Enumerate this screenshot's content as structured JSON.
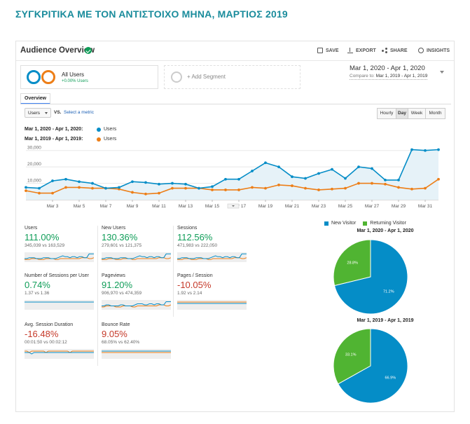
{
  "page_heading": "ΣΥΓΚΡΙΤΙΚΑ ΜΕ ΤΟΝ ΑΝΤΙΣΤΟΙΧΟ ΜΗΝΑ, ΜΑΡΤΙΟΣ 2019",
  "header": {
    "title": "Audience Overview",
    "actions": {
      "save": "SAVE",
      "export": "EXPORT",
      "share": "SHARE",
      "insights": "INSIGHTS"
    }
  },
  "segments": {
    "all_users": {
      "label": "All Users",
      "sub": "+0.00% Users"
    },
    "add_segment": "+ Add Segment"
  },
  "date_range": {
    "main": "Mar 1, 2020 - Apr 1, 2020",
    "compare_prefix": "Compare to:",
    "compare_range": "Mar 1, 2019 - Apr 1, 2019"
  },
  "tabs": {
    "overview": "Overview"
  },
  "controls": {
    "metric": "Users",
    "vs": "VS.",
    "select_metric": "Select a metric",
    "granularity": [
      "Hourly",
      "Day",
      "Week",
      "Month"
    ],
    "active_granularity": "Day"
  },
  "legend": {
    "current_range": "Mar 1, 2020 - Apr 1, 2020:",
    "previous_range": "Mar 1, 2019 - Apr 1, 2019:",
    "series_name": "Users"
  },
  "colors": {
    "current": "#058dc7",
    "previous": "#ed7e17",
    "new_visitor": "#058dc7",
    "returning_visitor": "#50b432",
    "positive": "#0f9d58",
    "negative": "#c53929",
    "heading": "#1a8c9c"
  },
  "chart_data": [
    {
      "type": "line",
      "x_ticks": [
        "Mar 3",
        "Mar 5",
        "Mar 7",
        "Mar 9",
        "Mar 11",
        "Mar 13",
        "Mar 15",
        "Mar 17",
        "Mar 19",
        "Mar 21",
        "Mar 23",
        "Mar 25",
        "Mar 27",
        "Mar 29",
        "Mar 31"
      ],
      "y_ticks": [
        "10,000",
        "20,000",
        "30,000"
      ],
      "ylim": [
        0,
        35000
      ],
      "x": [
        1,
        2,
        3,
        4,
        5,
        6,
        7,
        8,
        9,
        10,
        11,
        12,
        13,
        14,
        15,
        16,
        17,
        18,
        19,
        20,
        21,
        22,
        23,
        24,
        25,
        26,
        27,
        28,
        29,
        30,
        31,
        32
      ],
      "series": [
        {
          "values": [
            7500,
            7000,
            11500,
            12500,
            11000,
            10000,
            7000,
            7500,
            11000,
            10500,
            9500,
            10000,
            9500,
            7000,
            8000,
            12500,
            12500,
            17500,
            22500,
            20000,
            14000,
            13000,
            16000,
            18500,
            13000,
            20000,
            19000,
            12000,
            12000,
            30500,
            30000,
            30500
          ]
        },
        {
          "values": [
            5500,
            4000,
            4000,
            7500,
            7500,
            7000,
            7000,
            6500,
            4500,
            3500,
            4000,
            7000,
            7000,
            7000,
            6000,
            6000,
            6000,
            7500,
            7000,
            9000,
            8500,
            7000,
            6000,
            6500,
            7000,
            10000,
            10000,
            9500,
            7500,
            6500,
            7000,
            12500
          ]
        }
      ]
    },
    {
      "type": "pie",
      "title": "Mar 1, 2020 - Apr 1, 2020",
      "slices": [
        {
          "label": "New Visitor",
          "value": 71.2,
          "text": "71.2%"
        },
        {
          "label": "Returning Visitor",
          "value": 28.8,
          "text": "28.8%"
        }
      ]
    },
    {
      "type": "pie",
      "title": "Mar 1, 2019 - Apr 1, 2019",
      "slices": [
        {
          "label": "New Visitor",
          "value": 66.9,
          "text": "66.9%"
        },
        {
          "label": "Returning Visitor",
          "value": 33.1,
          "text": "33.1%"
        }
      ]
    }
  ],
  "metrics": [
    {
      "name": "Users",
      "value": "111.00%",
      "sign": "pos",
      "compare": "345,039 vs 163,529",
      "spark_a": [
        3,
        3,
        4,
        4,
        4,
        3,
        3,
        3,
        4,
        4,
        4,
        3,
        3,
        3,
        4,
        5,
        6,
        5,
        5,
        4,
        5,
        5,
        4,
        5,
        5,
        4,
        4,
        8,
        8,
        8
      ],
      "spark_b": [
        2,
        2,
        2,
        3,
        3,
        3,
        2,
        2,
        2,
        3,
        3,
        3,
        3,
        2,
        2,
        3,
        3,
        3,
        3,
        3,
        3,
        3,
        3,
        3,
        4,
        4,
        4,
        3,
        3,
        4
      ]
    },
    {
      "name": "New Users",
      "value": "130.36%",
      "sign": "pos",
      "compare": "279,601 vs 121,375",
      "spark_a": [
        3,
        3,
        4,
        4,
        4,
        3,
        3,
        3,
        4,
        4,
        4,
        3,
        3,
        3,
        4,
        5,
        6,
        5,
        5,
        4,
        5,
        5,
        4,
        5,
        5,
        4,
        4,
        8,
        8,
        8
      ],
      "spark_b": [
        2,
        2,
        2,
        3,
        3,
        3,
        2,
        2,
        2,
        3,
        3,
        3,
        3,
        2,
        2,
        3,
        3,
        3,
        3,
        3,
        3,
        3,
        3,
        3,
        4,
        4,
        4,
        3,
        3,
        4
      ]
    },
    {
      "name": "Sessions",
      "value": "112.56%",
      "sign": "pos",
      "compare": "471,983 vs 222,050",
      "spark_a": [
        3,
        3,
        4,
        4,
        4,
        3,
        3,
        3,
        4,
        4,
        4,
        3,
        3,
        3,
        4,
        5,
        6,
        5,
        5,
        4,
        5,
        5,
        4,
        5,
        5,
        4,
        4,
        8,
        8,
        8
      ],
      "spark_b": [
        2,
        2,
        2,
        3,
        3,
        3,
        2,
        2,
        2,
        3,
        3,
        3,
        3,
        2,
        2,
        3,
        3,
        3,
        3,
        3,
        3,
        3,
        3,
        3,
        4,
        4,
        4,
        3,
        3,
        4
      ]
    },
    {
      "name": "Number of Sessions per User",
      "value": "0.74%",
      "sign": "pos",
      "compare": "1.37 vs 1.36",
      "spark_a": [
        5,
        5,
        5,
        5,
        5,
        5,
        5,
        5,
        5,
        5,
        5,
        5,
        5,
        5,
        5,
        5,
        5,
        5,
        5,
        5,
        5,
        5,
        5,
        5,
        5,
        5,
        5,
        5,
        5,
        5
      ],
      "spark_b": [
        5,
        5,
        5,
        5,
        5,
        5,
        5,
        5,
        5,
        5,
        5,
        5,
        5,
        5,
        5,
        5,
        5,
        5,
        5,
        5,
        5,
        5,
        5,
        5,
        5,
        5,
        5,
        5,
        5,
        5
      ]
    },
    {
      "name": "Pageviews",
      "value": "91.20%",
      "sign": "pos",
      "compare": "906,970 vs 474,359",
      "spark_a": [
        3,
        3,
        4,
        4,
        3,
        3,
        3,
        3,
        4,
        4,
        3,
        3,
        3,
        3,
        4,
        5,
        5,
        5,
        4,
        4,
        5,
        5,
        4,
        5,
        5,
        4,
        4,
        7,
        7,
        7
      ],
      "spark_b": [
        2,
        2,
        3,
        3,
        3,
        3,
        2,
        2,
        2,
        3,
        3,
        3,
        3,
        2,
        2,
        3,
        3,
        3,
        3,
        3,
        3,
        3,
        3,
        3,
        4,
        4,
        4,
        3,
        3,
        4
      ]
    },
    {
      "name": "Pages / Session",
      "value": "-10.05%",
      "sign": "neg",
      "compare": "1.92 vs 2.14",
      "spark_a": [
        4,
        4,
        4,
        4,
        4,
        4,
        4,
        4,
        4,
        4,
        4,
        4,
        4,
        4,
        4,
        4,
        4,
        4,
        4,
        4,
        4,
        4,
        4,
        4,
        4,
        4,
        4,
        4,
        4,
        4
      ],
      "spark_b": [
        5,
        5,
        5,
        5,
        5,
        5,
        5,
        5,
        5,
        5,
        5,
        5,
        5,
        5,
        5,
        5,
        5,
        5,
        5,
        5,
        5,
        5,
        5,
        5,
        5,
        5,
        5,
        5,
        5,
        5
      ]
    },
    {
      "name": "Avg. Session Duration",
      "value": "-16.48%",
      "sign": "neg",
      "compare": "00:01:50 vs 00:02:12",
      "spark_a": [
        4,
        4,
        4,
        3,
        4,
        4,
        4,
        4,
        4,
        4,
        4,
        4,
        4,
        4,
        4,
        4,
        4,
        4,
        4,
        4,
        4,
        4,
        4,
        4,
        4,
        4,
        4,
        4,
        4,
        4
      ],
      "spark_b": [
        5,
        5,
        4,
        5,
        5,
        5,
        5,
        5,
        5,
        4,
        5,
        5,
        5,
        5,
        5,
        5,
        5,
        5,
        5,
        4,
        5,
        5,
        5,
        5,
        5,
        5,
        5,
        5,
        5,
        5
      ]
    },
    {
      "name": "Bounce Rate",
      "value": "9.05%",
      "sign": "neg",
      "compare": "68.05% vs 62.40%",
      "spark_a": [
        5,
        5,
        5,
        5,
        5,
        5,
        5,
        5,
        5,
        5,
        5,
        5,
        5,
        5,
        5,
        5,
        5,
        5,
        5,
        5,
        5,
        5,
        5,
        5,
        5,
        5,
        5,
        5,
        5,
        5
      ],
      "spark_b": [
        4,
        4,
        4,
        4,
        4,
        4,
        4,
        4,
        4,
        4,
        4,
        4,
        4,
        4,
        4,
        4,
        4,
        4,
        4,
        4,
        4,
        4,
        4,
        4,
        4,
        4,
        4,
        4,
        4,
        4
      ]
    }
  ],
  "pie_legend": {
    "new_visitor": "New Visitor",
    "returning_visitor": "Returning Visitor"
  }
}
